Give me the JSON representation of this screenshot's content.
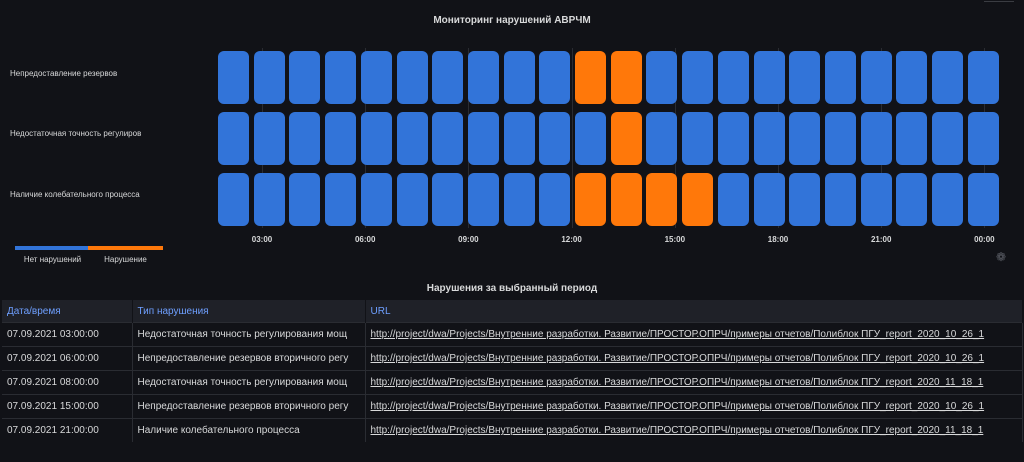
{
  "chart_title": "Мониторинг нарушений АВРЧМ",
  "rows": [
    {
      "label": "Непредоставление резервов",
      "cells": [
        0,
        0,
        0,
        0,
        0,
        0,
        0,
        0,
        0,
        0,
        1,
        1,
        0,
        0,
        0,
        0,
        0,
        0,
        0,
        0,
        0,
        0
      ]
    },
    {
      "label": "Недостаточная точность регулиров",
      "cells": [
        0,
        0,
        0,
        0,
        0,
        0,
        0,
        0,
        0,
        0,
        0,
        1,
        0,
        0,
        0,
        0,
        0,
        0,
        0,
        0,
        0,
        0
      ]
    },
    {
      "label": "Наличие колебательного процесса",
      "cells": [
        0,
        0,
        0,
        0,
        0,
        0,
        0,
        0,
        0,
        0,
        1,
        1,
        1,
        1,
        0,
        0,
        0,
        0,
        0,
        0,
        0,
        0
      ]
    }
  ],
  "x_ticks": [
    "03:00",
    "06:00",
    "09:00",
    "12:00",
    "15:00",
    "18:00",
    "21:00",
    "00:00"
  ],
  "legend": [
    {
      "label": "Нет нарушений",
      "color": "#3274d9"
    },
    {
      "label": "Нарушение",
      "color": "#ff780a"
    }
  ],
  "table_title": "Нарушения за выбранный период",
  "table": {
    "headers": [
      "Дата/время",
      "Тип нарушения",
      "URL"
    ],
    "rows": [
      [
        "07.09.2021 03:00:00",
        "Недостаточная точность регулирования мощ",
        "http://project/dwa/Projects/Внутренние разработки. Развитие/ПРОСТОР.ОПРЧ/примеры отчетов/Полиблок ПГУ_report_2020_10_26_1"
      ],
      [
        "07.09.2021 06:00:00",
        "Непредоставление резервов вторичного регу",
        "http://project/dwa/Projects/Внутренние разработки. Развитие/ПРОСТОР.ОПРЧ/примеры отчетов/Полиблок ПГУ_report_2020_10_26_1"
      ],
      [
        "07.09.2021 08:00:00",
        "Недостаточная точность регулирования мощ",
        "http://project/dwa/Projects/Внутренние разработки. Развитие/ПРОСТОР.ОПРЧ/примеры отчетов/Полиблок ПГУ_report_2020_11_18_1"
      ],
      [
        "07.09.2021 15:00:00",
        "Непредоставление резервов вторичного регу",
        "http://project/dwa/Projects/Внутренние разработки. Развитие/ПРОСТОР.ОПРЧ/примеры отчетов/Полиблок ПГУ_report_2020_10_26_1"
      ],
      [
        "07.09.2021 21:00:00",
        "Наличие колебательного процесса",
        "http://project/dwa/Projects/Внутренние разработки. Развитие/ПРОСТОР.ОПРЧ/примеры отчетов/Полиблок ПГУ_report_2020_11_18_1"
      ]
    ]
  },
  "icons": {
    "panel_logo": "grafana-logo-icon"
  }
}
